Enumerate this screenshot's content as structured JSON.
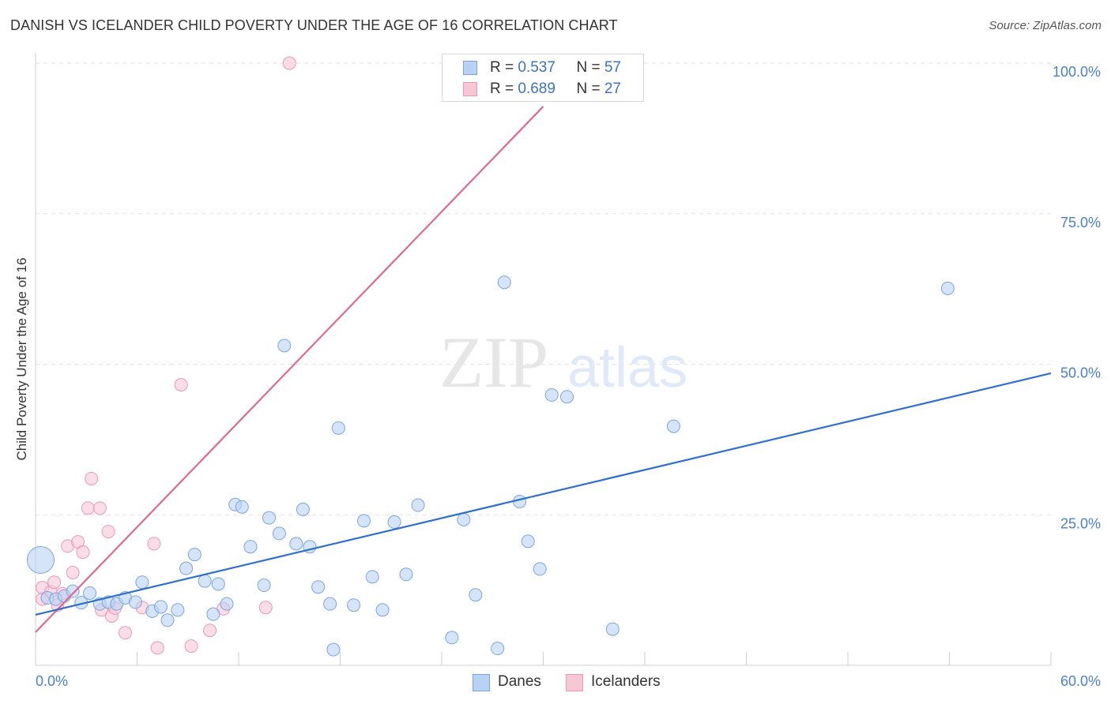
{
  "title": "DANISH VS ICELANDER CHILD POVERTY UNDER THE AGE OF 16 CORRELATION CHART",
  "source": "Source: ZipAtlas.com",
  "watermark": {
    "zip": "ZIP",
    "atlas": "atlas"
  },
  "colors": {
    "danes_fill": "#b9d2f3",
    "danes_stroke": "#7aa6e0",
    "danes_line": "#2f6fcf",
    "icel_fill": "#f6c7d5",
    "icel_stroke": "#e99ab3",
    "icel_line": "#e0698f",
    "tick_text": "#4a7fcf"
  },
  "legend_top": {
    "rows": [
      {
        "r_label": "R = ",
        "r_value": "0.537",
        "n_label": "N = ",
        "n_value": "57"
      },
      {
        "r_label": "R = ",
        "r_value": "0.689",
        "n_label": "N = ",
        "n_value": "27"
      }
    ]
  },
  "legend_bottom": {
    "danes": "Danes",
    "icelanders": "Icelanders"
  },
  "chart_data": {
    "type": "scatter",
    "title": "DANISH VS ICELANDER CHILD POVERTY UNDER THE AGE OF 16 CORRELATION CHART",
    "xlabel": "",
    "ylabel": "Child Poverty Under the Age of 16",
    "xlim": [
      0,
      60
    ],
    "ylim": [
      0,
      100
    ],
    "x_tick_labels": {
      "min": "0.0%",
      "max": "60.0%"
    },
    "y_ticks": [
      {
        "value": 25,
        "label": "25.0%"
      },
      {
        "value": 50,
        "label": "50.0%"
      },
      {
        "value": 75,
        "label": "75.0%"
      },
      {
        "value": 100,
        "label": "100.0%"
      }
    ],
    "grid": true,
    "legend": "top-center",
    "series": [
      {
        "name": "Danes",
        "r": 0.537,
        "n": 57,
        "trend": {
          "x0": 0,
          "y0": 8.4,
          "x1": 60,
          "y1": 48.5
        },
        "points": [
          [
            0.3,
            17.5
          ],
          [
            0.7,
            11.2
          ],
          [
            1.2,
            11.0
          ],
          [
            1.7,
            11.5
          ],
          [
            2.2,
            12.3
          ],
          [
            2.7,
            10.4
          ],
          [
            3.2,
            12.0
          ],
          [
            3.8,
            10.2
          ],
          [
            4.3,
            10.5
          ],
          [
            4.8,
            10.2
          ],
          [
            5.3,
            11.2
          ],
          [
            5.9,
            10.5
          ],
          [
            6.3,
            13.8
          ],
          [
            6.9,
            9.0
          ],
          [
            7.4,
            9.7
          ],
          [
            7.8,
            7.5
          ],
          [
            8.4,
            9.2
          ],
          [
            8.9,
            16.1
          ],
          [
            9.4,
            18.4
          ],
          [
            10.0,
            14.0
          ],
          [
            10.5,
            8.5
          ],
          [
            10.8,
            13.5
          ],
          [
            11.3,
            10.2
          ],
          [
            11.8,
            26.7
          ],
          [
            12.2,
            26.3
          ],
          [
            12.7,
            19.7
          ],
          [
            13.5,
            13.3
          ],
          [
            13.8,
            24.5
          ],
          [
            14.4,
            21.9
          ],
          [
            14.7,
            53.1
          ],
          [
            15.4,
            20.2
          ],
          [
            15.8,
            25.9
          ],
          [
            16.2,
            19.7
          ],
          [
            16.7,
            13.0
          ],
          [
            17.4,
            10.2
          ],
          [
            17.6,
            2.6
          ],
          [
            17.9,
            39.4
          ],
          [
            18.8,
            10.0
          ],
          [
            19.4,
            24.0
          ],
          [
            19.9,
            14.7
          ],
          [
            20.5,
            9.2
          ],
          [
            21.2,
            23.8
          ],
          [
            21.9,
            15.1
          ],
          [
            22.6,
            26.6
          ],
          [
            24.6,
            4.6
          ],
          [
            25.3,
            24.2
          ],
          [
            26.0,
            11.7
          ],
          [
            27.3,
            2.8
          ],
          [
            27.7,
            63.6
          ],
          [
            28.6,
            27.2
          ],
          [
            29.1,
            20.6
          ],
          [
            29.8,
            16.0
          ],
          [
            30.5,
            44.9
          ],
          [
            31.4,
            44.6
          ],
          [
            34.1,
            6.0
          ],
          [
            37.7,
            39.7
          ],
          [
            53.9,
            62.6
          ]
        ]
      },
      {
        "name": "Icelanders",
        "r": 0.689,
        "n": 27,
        "trend": {
          "x0": 0,
          "y0": 5.5,
          "x1": 30.0,
          "y1": 92.8
        },
        "points": [
          [
            0.4,
            12.9
          ],
          [
            0.4,
            11.0
          ],
          [
            0.9,
            12.2
          ],
          [
            1.1,
            13.8
          ],
          [
            1.3,
            10.0
          ],
          [
            1.6,
            11.9
          ],
          [
            1.9,
            19.8
          ],
          [
            2.2,
            15.4
          ],
          [
            2.5,
            20.5
          ],
          [
            2.8,
            18.8
          ],
          [
            3.1,
            26.1
          ],
          [
            3.3,
            31.0
          ],
          [
            3.8,
            26.1
          ],
          [
            3.9,
            9.2
          ],
          [
            4.3,
            22.2
          ],
          [
            4.5,
            8.2
          ],
          [
            4.7,
            9.5
          ],
          [
            5.3,
            5.4
          ],
          [
            6.3,
            9.6
          ],
          [
            7.0,
            20.2
          ],
          [
            7.2,
            2.9
          ],
          [
            8.6,
            46.6
          ],
          [
            9.2,
            3.2
          ],
          [
            10.3,
            5.8
          ],
          [
            11.1,
            9.4
          ],
          [
            13.6,
            9.6
          ],
          [
            15.0,
            100.0
          ]
        ]
      }
    ]
  }
}
